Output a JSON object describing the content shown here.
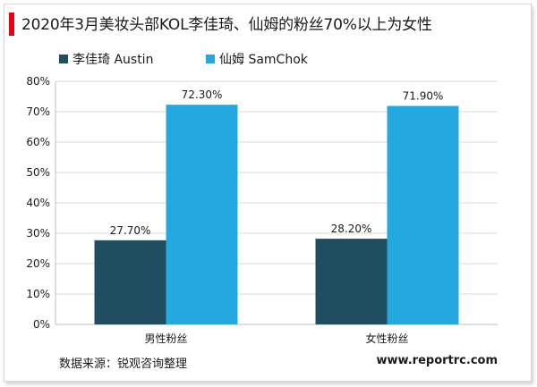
{
  "chart_data": {
    "type": "bar",
    "title": "2020年3月美妆头部KOL李佳琦、仙姆的粉丝70%以上为女性",
    "categories": [
      "男性粉丝",
      "女性粉丝"
    ],
    "series": [
      {
        "name": "李佳琦 Austin",
        "values": [
          27.7,
          28.2
        ],
        "labels": [
          "27.70%",
          "28.20%"
        ],
        "color": "#1f4e60"
      },
      {
        "name": "仙姆 SamChok",
        "values": [
          72.3,
          71.9
        ],
        "labels": [
          "72.30%",
          "71.90%"
        ],
        "color": "#23a8e0"
      }
    ],
    "y_ticks": [
      "0%",
      "10%",
      "20%",
      "30%",
      "40%",
      "50%",
      "60%",
      "70%",
      "80%"
    ],
    "ylim": [
      0,
      80
    ],
    "grid": true,
    "legend_position": "top-left"
  },
  "footer": {
    "source": "数据来源：锐观咨询整理",
    "website": "www.reportrc.com"
  },
  "colors": {
    "accent": "#e60012",
    "grid": "#d9d9d9"
  }
}
